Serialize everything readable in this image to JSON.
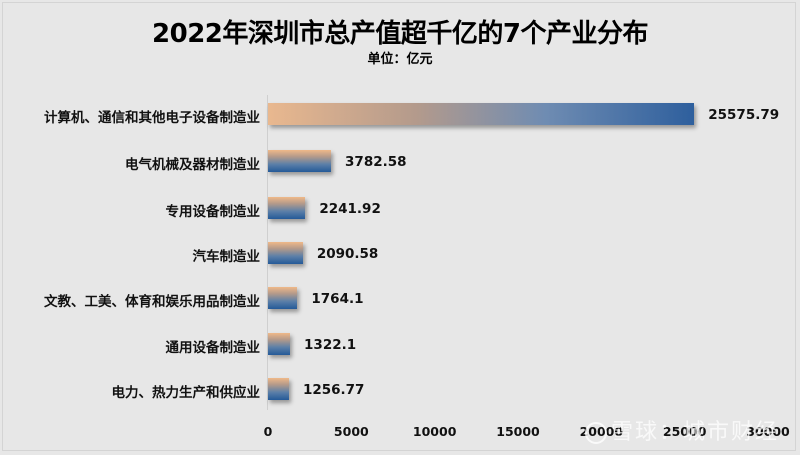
{
  "chart_data": {
    "type": "bar",
    "orientation": "horizontal",
    "title": "2022年深圳市总产值超千亿的7个产业分布",
    "subtitle": "单位：亿元",
    "xlabel": "",
    "ylabel": "",
    "xlim": [
      0,
      30000
    ],
    "x_ticks": [
      "0",
      "5000",
      "10000",
      "15000",
      "20000",
      "25000",
      "30000"
    ],
    "grid": false,
    "legend": null,
    "categories": [
      "计算机、通信和其他电子设备制造业",
      "电气机械及器材制造业",
      "专用设备制造业",
      "汽车制造业",
      "文教、工美、体育和娱乐用品制造业",
      "通用设备制造业",
      "电力、热力生产和供应业"
    ],
    "values": [
      25575.79,
      3782.58,
      2241.92,
      2090.58,
      1764.1,
      1322.1,
      1256.77
    ],
    "value_labels": [
      "25575.79",
      "3782.58",
      "2241.92",
      "2090.58",
      "1764.1",
      "1322.1",
      "1256.77"
    ],
    "colors": {
      "bar_gradient_top": "#f0b989",
      "bar_gradient_bottom": "#245a98",
      "background": "#e7e7e7"
    }
  },
  "watermark": {
    "text": "雪球：城市财经"
  }
}
